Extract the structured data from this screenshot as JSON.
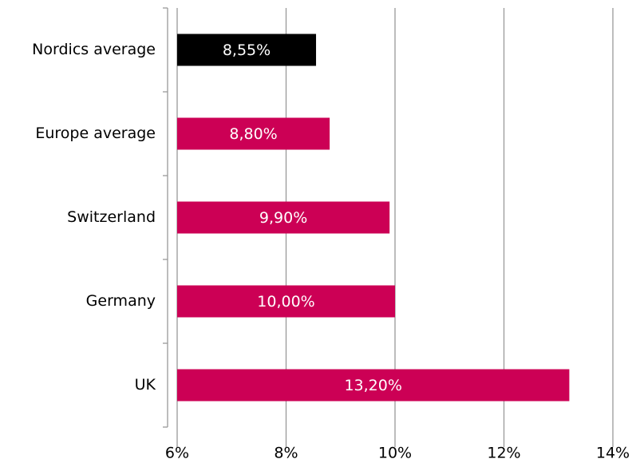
{
  "chart_data": {
    "type": "bar",
    "orientation": "horizontal",
    "categories": [
      "Nordics average",
      "Europe average",
      "Switzerland",
      "Germany",
      "UK"
    ],
    "values": [
      8.55,
      8.8,
      9.9,
      10,
      13.2
    ],
    "value_labels": [
      "8,55%",
      "8,80%",
      "9,90%",
      "10,00%",
      "13,20%"
    ],
    "colors": [
      "#000000",
      "#cc0055",
      "#cc0055",
      "#cc0055",
      "#cc0055"
    ],
    "xlim": [
      6,
      14
    ],
    "xticks": [
      {
        "value": 6,
        "label": "6%"
      },
      {
        "value": 8,
        "label": "8%"
      },
      {
        "value": 10,
        "label": "10%"
      },
      {
        "value": 12,
        "label": "12%"
      },
      {
        "value": 14,
        "label": "14%"
      }
    ],
    "grid": true
  }
}
